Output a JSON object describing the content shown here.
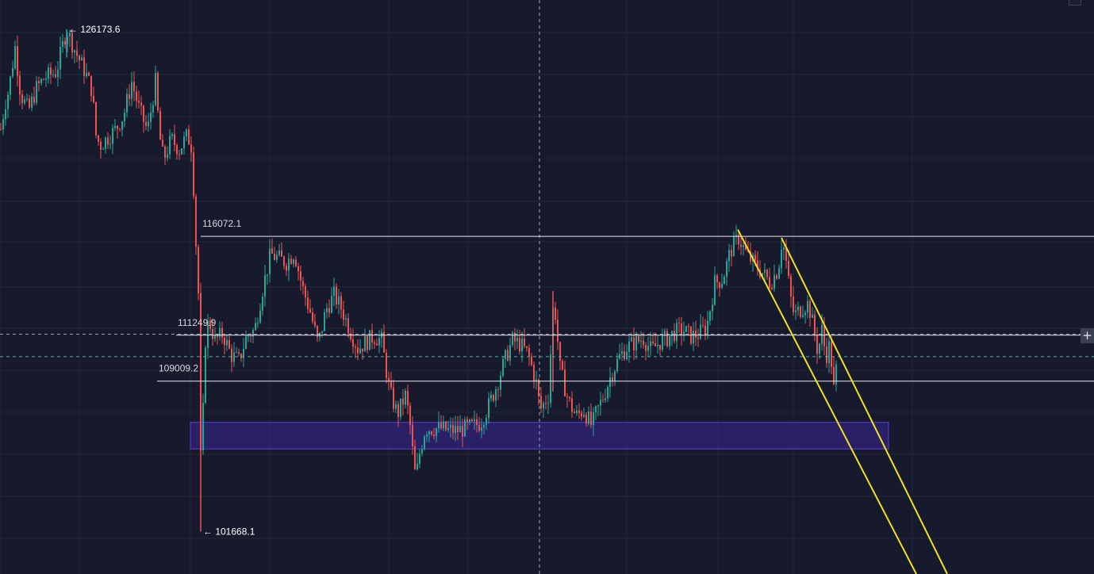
{
  "chart_data": {
    "type": "candlestick",
    "title": "",
    "xlabel": "",
    "ylabel": "",
    "ylim": [
      99600,
      127600
    ],
    "grid": true,
    "colors": {
      "background": "#161a2c",
      "grid": "#232838",
      "up": "#26a69a",
      "down": "#ef5350",
      "level_lines": "#e8e8ee",
      "trendline": "#f3e21b",
      "zone_fill": "#3d24a8"
    },
    "extremes": {
      "high": {
        "value": 126173.6,
        "label": "← 126173.6"
      },
      "low": {
        "value": 101668.1,
        "label": "← 101668.1"
      }
    },
    "levels": [
      {
        "value": 116072.1,
        "label": "116072.1"
      },
      {
        "value": 111249.9,
        "label": "111249.9"
      },
      {
        "value": 109009.2,
        "label": "109009.2"
      }
    ],
    "crosshair_price": 111300,
    "secondary_dashed_price": 110200,
    "zone": {
      "from": 107000,
      "to": 105700
    },
    "trendlines": [
      {
        "from_price": 116400,
        "to_price": 99600
      },
      {
        "from_price": 116000,
        "to_price": 99600
      }
    ],
    "price_path": [
      [
        0,
        121300
      ],
      [
        5,
        122500
      ],
      [
        10,
        123200
      ],
      [
        18,
        125300
      ],
      [
        25,
        123000
      ],
      [
        35,
        122200
      ],
      [
        45,
        123300
      ],
      [
        55,
        123800
      ],
      [
        70,
        124100
      ],
      [
        83,
        126173.6
      ],
      [
        95,
        125000
      ],
      [
        105,
        124200
      ],
      [
        115,
        123200
      ],
      [
        120,
        121000
      ],
      [
        125,
        120500
      ],
      [
        135,
        120900
      ],
      [
        145,
        121300
      ],
      [
        155,
        122000
      ],
      [
        165,
        123600
      ],
      [
        175,
        122200
      ],
      [
        185,
        121200
      ],
      [
        195,
        123600
      ],
      [
        200,
        121000
      ],
      [
        205,
        119800
      ],
      [
        215,
        120800
      ],
      [
        225,
        120300
      ],
      [
        235,
        121000
      ],
      [
        241,
        120400
      ],
      [
        245,
        116500
      ],
      [
        250,
        112500
      ],
      [
        253,
        101668.1
      ],
      [
        256,
        110500
      ],
      [
        262,
        112000
      ],
      [
        270,
        111000
      ],
      [
        280,
        111300
      ],
      [
        290,
        110300
      ],
      [
        300,
        110000
      ],
      [
        310,
        111200
      ],
      [
        320,
        111500
      ],
      [
        330,
        113500
      ],
      [
        340,
        115200
      ],
      [
        350,
        115000
      ],
      [
        360,
        114800
      ],
      [
        370,
        115300
      ],
      [
        380,
        113600
      ],
      [
        390,
        112400
      ],
      [
        400,
        110800
      ],
      [
        410,
        112500
      ],
      [
        420,
        113200
      ],
      [
        430,
        112500
      ],
      [
        440,
        111500
      ],
      [
        450,
        110600
      ],
      [
        460,
        110900
      ],
      [
        470,
        111200
      ],
      [
        480,
        111000
      ],
      [
        490,
        108500
      ],
      [
        500,
        107400
      ],
      [
        510,
        108300
      ],
      [
        515,
        107200
      ],
      [
        520,
        105200
      ],
      [
        523,
        104200
      ],
      [
        528,
        105500
      ],
      [
        535,
        106700
      ],
      [
        545,
        106700
      ],
      [
        555,
        106700
      ],
      [
        565,
        106600
      ],
      [
        575,
        106600
      ],
      [
        585,
        106700
      ],
      [
        595,
        106800
      ],
      [
        605,
        107000
      ],
      [
        615,
        107800
      ],
      [
        625,
        108800
      ],
      [
        635,
        110000
      ],
      [
        645,
        111000
      ],
      [
        655,
        110800
      ],
      [
        665,
        110300
      ],
      [
        675,
        108900
      ],
      [
        680,
        107600
      ],
      [
        690,
        108300
      ],
      [
        697,
        113200
      ],
      [
        705,
        109600
      ],
      [
        715,
        108100
      ],
      [
        725,
        107300
      ],
      [
        735,
        107600
      ],
      [
        745,
        106800
      ],
      [
        750,
        107400
      ],
      [
        760,
        108300
      ],
      [
        770,
        109400
      ],
      [
        780,
        110200
      ],
      [
        790,
        110700
      ],
      [
        800,
        110900
      ],
      [
        810,
        111100
      ],
      [
        820,
        110500
      ],
      [
        830,
        110900
      ],
      [
        840,
        111100
      ],
      [
        850,
        111400
      ],
      [
        860,
        111500
      ],
      [
        870,
        111200
      ],
      [
        880,
        111300
      ],
      [
        890,
        111700
      ],
      [
        900,
        113800
      ],
      [
        910,
        114000
      ],
      [
        920,
        115400
      ],
      [
        930,
        116000
      ],
      [
        940,
        115200
      ],
      [
        950,
        114700
      ],
      [
        960,
        114300
      ],
      [
        970,
        113800
      ],
      [
        980,
        114500
      ],
      [
        985,
        116000
      ],
      [
        990,
        114800
      ],
      [
        995,
        113200
      ],
      [
        1000,
        112200
      ],
      [
        1010,
        112600
      ],
      [
        1018,
        112800
      ],
      [
        1025,
        111500
      ],
      [
        1030,
        110400
      ],
      [
        1035,
        111500
      ],
      [
        1040,
        110200
      ],
      [
        1045,
        110800
      ],
      [
        1050,
        108600
      ],
      [
        1055,
        110200
      ]
    ],
    "volatility": 900
  },
  "controls": {
    "add_button_label": "+"
  }
}
